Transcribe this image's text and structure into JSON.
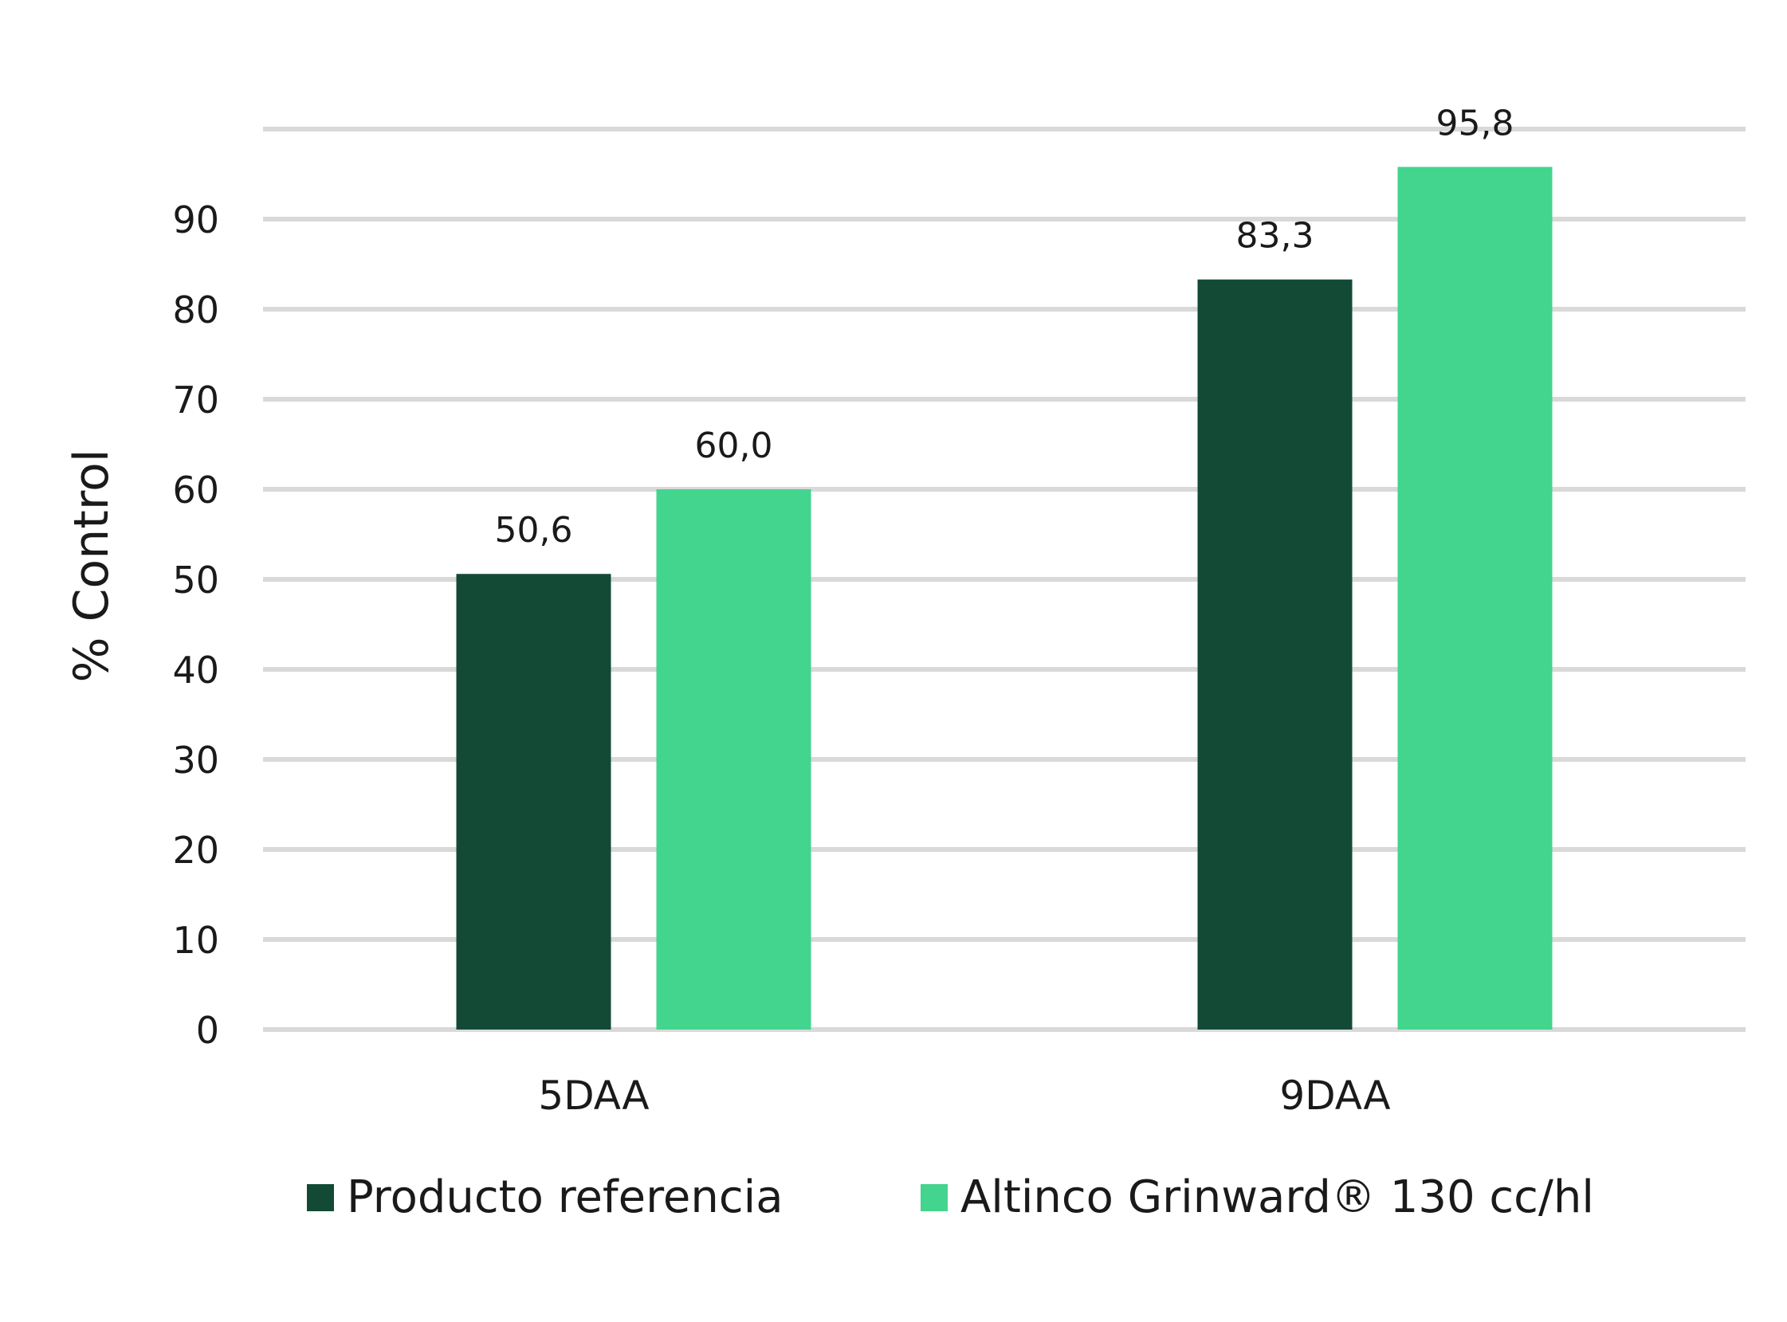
{
  "chart_data": {
    "type": "bar",
    "categories": [
      "5DAA",
      "9DAA"
    ],
    "series": [
      {
        "name": "Producto referencia",
        "values": [
          50.6,
          83.3
        ],
        "labels": [
          "50,6",
          "83,3"
        ],
        "color": "#134a36"
      },
      {
        "name": "Altinco Grinward® 130 cc/hl",
        "values": [
          60.0,
          95.8
        ],
        "labels": [
          "60,0",
          "95,8"
        ],
        "color": "#43d48d"
      }
    ],
    "title": "",
    "xlabel": "",
    "ylabel": "% Control",
    "ylim": [
      0,
      100
    ],
    "yticks": [
      0,
      10,
      20,
      30,
      40,
      50,
      60,
      70,
      80,
      90
    ],
    "grid": true,
    "grid_color": "#d9d9d9",
    "legend": "bottom"
  }
}
